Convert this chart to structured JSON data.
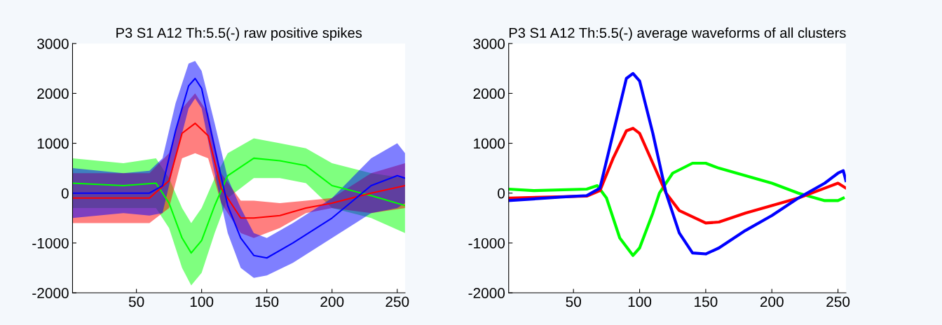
{
  "chart_data": [
    {
      "type": "line",
      "title": "P3 S1 A12 Th:5.5(-) raw positive spikes",
      "xlim": [
        1,
        256
      ],
      "ylim": [
        -2000,
        3000
      ],
      "xticks": [
        50,
        100,
        150,
        200,
        250
      ],
      "yticks": [
        -2000,
        -1000,
        0,
        1000,
        2000,
        3000
      ],
      "grid": false,
      "legend": false,
      "series": [
        {
          "color": "#00ff00",
          "x": [
            1,
            40,
            65,
            75,
            85,
            92,
            100,
            110,
            120,
            140,
            160,
            180,
            200,
            230,
            256
          ],
          "values": [
            200,
            150,
            200,
            -200,
            -900,
            -1200,
            -950,
            -250,
            350,
            700,
            650,
            550,
            150,
            -50,
            -250
          ],
          "lower": [
            -300,
            -300,
            -300,
            -700,
            -1500,
            -1850,
            -1600,
            -800,
            -100,
            300,
            300,
            200,
            -300,
            -500,
            -800
          ],
          "upper": [
            700,
            600,
            700,
            300,
            -300,
            -600,
            -300,
            300,
            800,
            1100,
            1000,
            900,
            600,
            400,
            300
          ]
        },
        {
          "color": "#ff0000",
          "x": [
            1,
            60,
            75,
            85,
            95,
            105,
            115,
            130,
            140,
            160,
            180,
            200,
            230,
            256
          ],
          "values": [
            -100,
            -100,
            250,
            1200,
            1400,
            1150,
            100,
            -500,
            -500,
            -450,
            -300,
            -200,
            0,
            150
          ],
          "lower": [
            -600,
            -600,
            -300,
            700,
            800,
            700,
            -200,
            -800,
            -900,
            -700,
            -400,
            -300,
            -400,
            -300
          ],
          "upper": [
            400,
            400,
            800,
            1700,
            2000,
            1600,
            400,
            -150,
            -150,
            -200,
            -150,
            -100,
            400,
            600
          ]
        },
        {
          "color": "#0000ff",
          "x": [
            1,
            40,
            60,
            70,
            80,
            90,
            95,
            100,
            110,
            120,
            130,
            140,
            150,
            170,
            200,
            230,
            250,
            256
          ],
          "values": [
            0,
            0,
            0,
            150,
            1250,
            2150,
            2300,
            2100,
            900,
            -250,
            -900,
            -1250,
            -1300,
            -1000,
            -500,
            150,
            350,
            300
          ],
          "lower": [
            -500,
            -400,
            -450,
            -400,
            700,
            1700,
            1900,
            1700,
            400,
            -800,
            -1500,
            -1700,
            -1650,
            -1400,
            -900,
            -400,
            -300,
            -200
          ],
          "upper": [
            500,
            400,
            450,
            700,
            1800,
            2600,
            2650,
            2450,
            1400,
            300,
            -300,
            -800,
            -900,
            -600,
            -100,
            700,
            1000,
            800
          ]
        }
      ]
    },
    {
      "type": "line",
      "title": "P3 S1 A12 Th:5.5(-) average waveforms of all clusters",
      "xlim": [
        1,
        256
      ],
      "ylim": [
        -2000,
        3000
      ],
      "xticks": [
        50,
        100,
        150,
        200,
        250
      ],
      "yticks": [
        -2000,
        -1000,
        0,
        1000,
        2000,
        3000
      ],
      "grid": false,
      "legend": false,
      "marker": "none",
      "line_style": "solid",
      "series": [
        {
          "color": "#00ff00",
          "x": [
            1,
            20,
            60,
            68,
            75,
            85,
            95,
            100,
            110,
            115,
            125,
            140,
            150,
            160,
            180,
            200,
            220,
            240,
            250,
            254
          ],
          "values": [
            80,
            50,
            80,
            150,
            -100,
            -900,
            -1250,
            -1100,
            -400,
            0,
            400,
            600,
            600,
            500,
            350,
            200,
            0,
            -150,
            -150,
            -100
          ]
        },
        {
          "color": "#ff0000",
          "x": [
            1,
            60,
            70,
            80,
            90,
            95,
            100,
            110,
            120,
            130,
            150,
            160,
            180,
            200,
            220,
            240,
            250,
            256
          ],
          "values": [
            -100,
            -60,
            50,
            700,
            1250,
            1300,
            1200,
            600,
            0,
            -350,
            -600,
            -580,
            -400,
            -250,
            -100,
            100,
            200,
            100
          ]
        },
        {
          "color": "#0000ff",
          "x": [
            1,
            40,
            60,
            70,
            80,
            90,
            95,
            100,
            110,
            120,
            130,
            140,
            150,
            160,
            180,
            200,
            220,
            240,
            250,
            254,
            256
          ],
          "values": [
            -150,
            -80,
            -50,
            100,
            1200,
            2300,
            2400,
            2250,
            1200,
            0,
            -800,
            -1200,
            -1220,
            -1100,
            -750,
            -450,
            -100,
            200,
            400,
            450,
            250
          ]
        }
      ]
    }
  ]
}
